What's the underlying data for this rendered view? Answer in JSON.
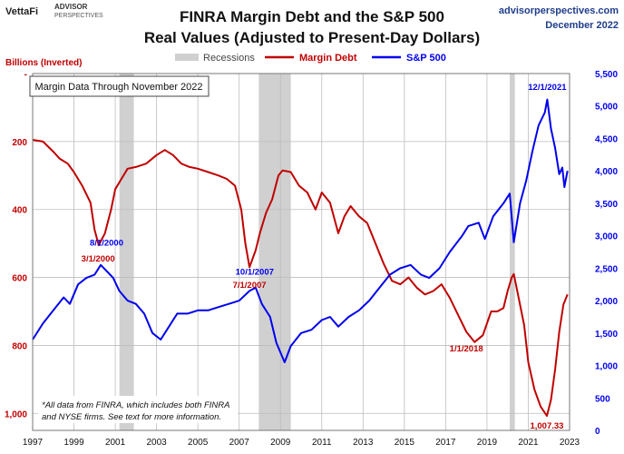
{
  "header": {
    "brand_vetta": "VettaFi",
    "brand_advisor": "ADVISOR",
    "brand_perspectives": "PERSPECTIVES",
    "title_line1": "FINRA Margin Debt and the S&P 500",
    "title_line2": "Real Values (Adjusted to Present-Day Dollars)",
    "site": "advisorperspectives.com",
    "date": "December 2022"
  },
  "colors": {
    "margin_debt": "#c00000",
    "sp500": "#0000ee",
    "recession": "#d0d0d0",
    "left_axis": "#c00000",
    "right_axis": "#0000ee",
    "grid": "#bdbdbd",
    "label_blue": "#0000ee",
    "label_red": "#c00000"
  },
  "chart_data": {
    "type": "line",
    "title": "FINRA Margin Debt and the S&P 500",
    "subtitle": "Real Values (Adjusted to Present-Day Dollars)",
    "ylabel_left": "Billions (Inverted)",
    "left_axis": {
      "min": 0,
      "max": 1050,
      "inverted": true,
      "ticks": [
        0,
        200,
        400,
        600,
        800,
        1000
      ],
      "tick_labels": [
        "-",
        "200",
        "400",
        "600",
        "800",
        "1,000"
      ]
    },
    "right_axis": {
      "min": 0,
      "max": 5500,
      "ticks": [
        0,
        500,
        1000,
        1500,
        2000,
        2500,
        3000,
        3500,
        4000,
        4500,
        5000,
        5500
      ],
      "tick_labels": [
        "0",
        "500",
        "1,000",
        "1,500",
        "2,000",
        "2,500",
        "3,000",
        "3,500",
        "4,000",
        "4,500",
        "5,000",
        "5,500"
      ]
    },
    "x_axis": {
      "min": 1997.0,
      "max": 2023.0,
      "ticks": [
        1997,
        1999,
        2001,
        2003,
        2005,
        2007,
        2009,
        2011,
        2013,
        2015,
        2017,
        2019,
        2021,
        2023
      ],
      "tick_labels": [
        "1997",
        "1999",
        "2001",
        "2003",
        "2005",
        "2007",
        "2009",
        "2011",
        "2013",
        "2015",
        "2017",
        "2019",
        "2021",
        "2023"
      ]
    },
    "legend": {
      "position": "top-center",
      "recessions": "Recessions",
      "margin_debt": "Margin Debt",
      "sp500": "S&P 500"
    },
    "note_box": "Margin Data Through November 2022",
    "footnote_line1": "*All data from FINRA, which includes both FINRA",
    "footnote_line2": "and NYSE firms. See text for more information.",
    "recessions": [
      [
        2001.2,
        2001.9
      ],
      [
        2007.95,
        2009.5
      ],
      [
        2020.1,
        2020.35
      ]
    ],
    "series": [
      {
        "name": "Margin Debt",
        "axis": "left",
        "points": [
          [
            1997.0,
            195
          ],
          [
            1997.5,
            200
          ],
          [
            1998.0,
            230
          ],
          [
            1998.3,
            250
          ],
          [
            1998.7,
            265
          ],
          [
            1999.0,
            290
          ],
          [
            1999.4,
            330
          ],
          [
            1999.8,
            380
          ],
          [
            2000.0,
            460
          ],
          [
            2000.2,
            505
          ],
          [
            2000.5,
            470
          ],
          [
            2000.8,
            400
          ],
          [
            2001.0,
            340
          ],
          [
            2001.3,
            310
          ],
          [
            2001.6,
            280
          ],
          [
            2002.0,
            275
          ],
          [
            2002.5,
            265
          ],
          [
            2003.0,
            240
          ],
          [
            2003.4,
            225
          ],
          [
            2003.8,
            240
          ],
          [
            2004.2,
            265
          ],
          [
            2004.6,
            275
          ],
          [
            2005.0,
            280
          ],
          [
            2005.5,
            290
          ],
          [
            2006.0,
            300
          ],
          [
            2006.4,
            310
          ],
          [
            2006.8,
            330
          ],
          [
            2007.1,
            400
          ],
          [
            2007.3,
            500
          ],
          [
            2007.5,
            570
          ],
          [
            2007.8,
            520
          ],
          [
            2008.0,
            470
          ],
          [
            2008.3,
            410
          ],
          [
            2008.6,
            370
          ],
          [
            2008.9,
            300
          ],
          [
            2009.1,
            285
          ],
          [
            2009.5,
            290
          ],
          [
            2009.9,
            330
          ],
          [
            2010.3,
            350
          ],
          [
            2010.7,
            400
          ],
          [
            2011.0,
            350
          ],
          [
            2011.4,
            380
          ],
          [
            2011.8,
            470
          ],
          [
            2012.1,
            420
          ],
          [
            2012.4,
            390
          ],
          [
            2012.8,
            420
          ],
          [
            2013.2,
            440
          ],
          [
            2013.6,
            500
          ],
          [
            2014.0,
            560
          ],
          [
            2014.4,
            610
          ],
          [
            2014.8,
            620
          ],
          [
            2015.2,
            600
          ],
          [
            2015.6,
            630
          ],
          [
            2016.0,
            650
          ],
          [
            2016.4,
            640
          ],
          [
            2016.8,
            620
          ],
          [
            2017.2,
            660
          ],
          [
            2017.6,
            710
          ],
          [
            2018.0,
            760
          ],
          [
            2018.4,
            790
          ],
          [
            2018.8,
            770
          ],
          [
            2019.2,
            700
          ],
          [
            2019.5,
            700
          ],
          [
            2019.8,
            690
          ],
          [
            2020.0,
            640
          ],
          [
            2020.2,
            600
          ],
          [
            2020.3,
            590
          ],
          [
            2020.5,
            650
          ],
          [
            2020.8,
            740
          ],
          [
            2021.0,
            850
          ],
          [
            2021.3,
            930
          ],
          [
            2021.6,
            980
          ],
          [
            2021.9,
            1007.33
          ],
          [
            2022.1,
            960
          ],
          [
            2022.3,
            870
          ],
          [
            2022.5,
            760
          ],
          [
            2022.7,
            680
          ],
          [
            2022.9,
            650
          ]
        ]
      },
      {
        "name": "S&P 500",
        "axis": "right",
        "points": [
          [
            1997.0,
            1400
          ],
          [
            1997.5,
            1650
          ],
          [
            1998.0,
            1850
          ],
          [
            1998.5,
            2050
          ],
          [
            1998.8,
            1950
          ],
          [
            1999.2,
            2250
          ],
          [
            1999.6,
            2350
          ],
          [
            2000.0,
            2400
          ],
          [
            2000.3,
            2550
          ],
          [
            2000.6,
            2450
          ],
          [
            2000.9,
            2350
          ],
          [
            2001.2,
            2150
          ],
          [
            2001.6,
            2000
          ],
          [
            2002.0,
            1950
          ],
          [
            2002.4,
            1800
          ],
          [
            2002.8,
            1500
          ],
          [
            2003.2,
            1400
          ],
          [
            2003.6,
            1600
          ],
          [
            2004.0,
            1800
          ],
          [
            2004.5,
            1800
          ],
          [
            2005.0,
            1850
          ],
          [
            2005.5,
            1850
          ],
          [
            2006.0,
            1900
          ],
          [
            2006.5,
            1950
          ],
          [
            2007.0,
            2000
          ],
          [
            2007.5,
            2150
          ],
          [
            2007.8,
            2200
          ],
          [
            2008.1,
            1950
          ],
          [
            2008.5,
            1750
          ],
          [
            2008.8,
            1350
          ],
          [
            2009.2,
            1050
          ],
          [
            2009.5,
            1300
          ],
          [
            2010.0,
            1500
          ],
          [
            2010.5,
            1550
          ],
          [
            2011.0,
            1700
          ],
          [
            2011.4,
            1750
          ],
          [
            2011.8,
            1600
          ],
          [
            2012.3,
            1750
          ],
          [
            2012.8,
            1850
          ],
          [
            2013.3,
            2000
          ],
          [
            2013.8,
            2200
          ],
          [
            2014.3,
            2400
          ],
          [
            2014.8,
            2500
          ],
          [
            2015.3,
            2550
          ],
          [
            2015.8,
            2400
          ],
          [
            2016.2,
            2350
          ],
          [
            2016.7,
            2500
          ],
          [
            2017.2,
            2750
          ],
          [
            2017.8,
            3000
          ],
          [
            2018.1,
            3150
          ],
          [
            2018.6,
            3200
          ],
          [
            2018.9,
            2950
          ],
          [
            2019.3,
            3300
          ],
          [
            2019.8,
            3500
          ],
          [
            2020.1,
            3650
          ],
          [
            2020.3,
            2900
          ],
          [
            2020.6,
            3500
          ],
          [
            2020.9,
            3850
          ],
          [
            2021.2,
            4300
          ],
          [
            2021.5,
            4700
          ],
          [
            2021.8,
            4900
          ],
          [
            2021.92,
            5100
          ],
          [
            2022.1,
            4650
          ],
          [
            2022.3,
            4350
          ],
          [
            2022.5,
            3950
          ],
          [
            2022.65,
            4050
          ],
          [
            2022.75,
            3750
          ],
          [
            2022.9,
            4000
          ]
        ]
      }
    ],
    "annotations": [
      {
        "text": "8/1/2000",
        "x": 2000.58,
        "y": 2850,
        "axis": "right",
        "color": "blue"
      },
      {
        "text": "3/1/2000",
        "x": 2000.17,
        "y": 2600,
        "axis": "right",
        "color": "red"
      },
      {
        "text": "10/1/2007",
        "x": 2007.75,
        "y": 2400,
        "axis": "right",
        "color": "blue"
      },
      {
        "text": "7/1/2007",
        "x": 2007.5,
        "y": 2200,
        "axis": "right",
        "color": "red"
      },
      {
        "text": "1/1/2018",
        "x": 2018.0,
        "y": 1220,
        "axis": "right",
        "color": "red"
      },
      {
        "text": "12/1/2021",
        "x": 2021.92,
        "y": 5250,
        "axis": "right",
        "color": "blue"
      },
      {
        "text": "1,007.33",
        "x": 2021.9,
        "y": 30,
        "axis": "right",
        "color": "red"
      }
    ]
  }
}
